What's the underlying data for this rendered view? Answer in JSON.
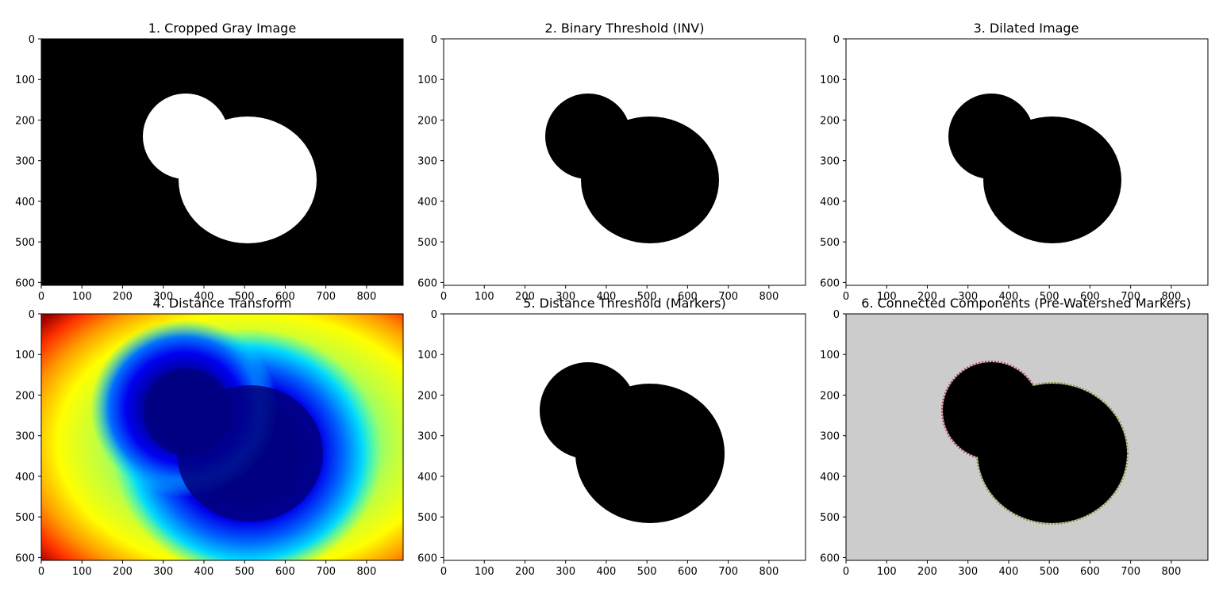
{
  "figure": {
    "panels": [
      {
        "title": "1. Cropped Gray Image",
        "x_ticks": [
          "0",
          "100",
          "200",
          "300",
          "400",
          "500",
          "600",
          "700",
          "800"
        ],
        "y_ticks": [
          "0",
          "100",
          "200",
          "300",
          "400",
          "500",
          "600"
        ],
        "colormap": "gray",
        "background": "#000000",
        "foreground": "#ffffff"
      },
      {
        "title": "2. Binary Threshold (INV)",
        "x_ticks": [
          "0",
          "100",
          "200",
          "300",
          "400",
          "500",
          "600",
          "700",
          "800"
        ],
        "y_ticks": [
          "0",
          "100",
          "200",
          "300",
          "400",
          "500",
          "600"
        ],
        "colormap": "gray",
        "background": "#ffffff",
        "foreground": "#000000"
      },
      {
        "title": "3. Dilated Image",
        "x_ticks": [
          "0",
          "100",
          "200",
          "300",
          "400",
          "500",
          "600",
          "700",
          "800"
        ],
        "y_ticks": [
          "0",
          "100",
          "200",
          "300",
          "400",
          "500",
          "600"
        ],
        "colormap": "gray",
        "background": "#ffffff",
        "foreground": "#000000"
      },
      {
        "title": "4. Distance Transform",
        "x_ticks": [
          "0",
          "100",
          "200",
          "300",
          "400",
          "500",
          "600",
          "700",
          "800"
        ],
        "y_ticks": [
          "0",
          "100",
          "200",
          "300",
          "400",
          "500",
          "600"
        ],
        "colormap": "jet"
      },
      {
        "title": "5. Distance Threshold (Markers)",
        "x_ticks": [
          "0",
          "100",
          "200",
          "300",
          "400",
          "500",
          "600",
          "700",
          "800"
        ],
        "y_ticks": [
          "0",
          "100",
          "200",
          "300",
          "400",
          "500",
          "600"
        ],
        "colormap": "gray",
        "background": "#ffffff",
        "foreground": "#000000"
      },
      {
        "title": "6. Connected Components (Pre-Watershed Markers)",
        "x_ticks": [
          "0",
          "100",
          "200",
          "300",
          "400",
          "500",
          "600",
          "700",
          "800"
        ],
        "y_ticks": [
          "0",
          "100",
          "200",
          "300",
          "400",
          "500",
          "600"
        ],
        "colormap": "labels",
        "background": "#cccccc",
        "foreground": "#000000"
      }
    ]
  }
}
